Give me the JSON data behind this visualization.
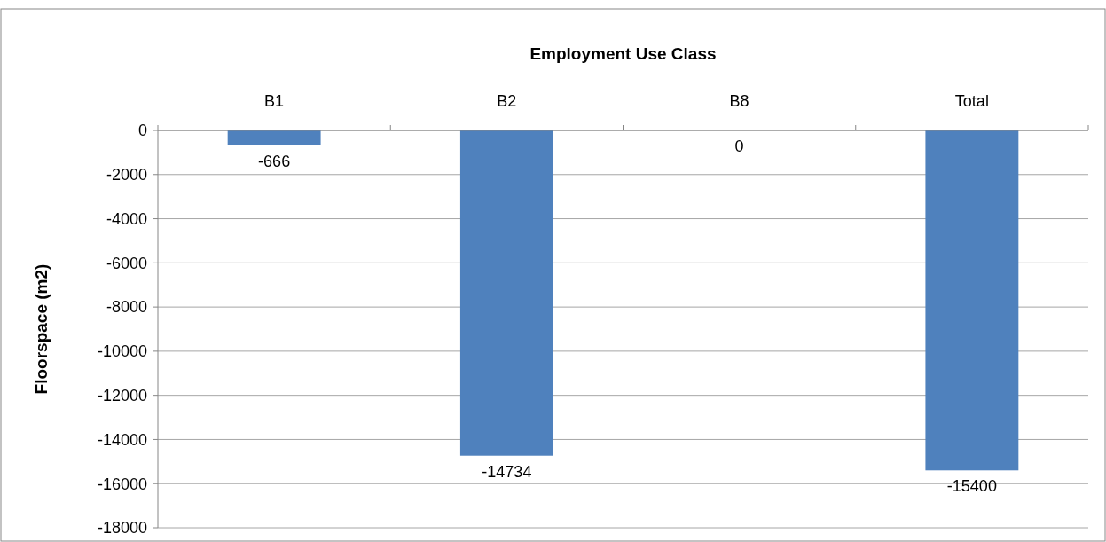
{
  "chart_data": {
    "type": "bar",
    "title": "Employment Use Class",
    "ylabel": "Floorspace (m2)",
    "categories": [
      "B1",
      "B2",
      "B8",
      "Total"
    ],
    "values": [
      -666,
      -14734,
      0,
      -15400
    ],
    "color": "#4f81bd",
    "ylim": [
      -18000,
      0
    ],
    "yticks": [
      -18000,
      -16000,
      -14000,
      -12000,
      -10000,
      -8000,
      -6000,
      -4000,
      -2000,
      0
    ],
    "grid": "y",
    "data_labels": true
  }
}
